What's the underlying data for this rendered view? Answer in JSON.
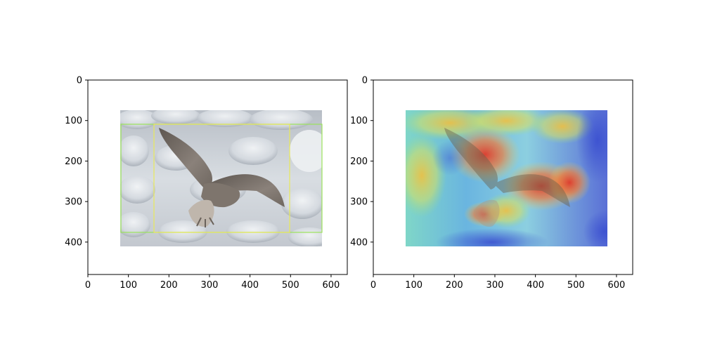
{
  "figure": {
    "panels": [
      {
        "name": "original-with-boxes",
        "image": "seagull-over-ice",
        "x_ticks": [
          "0",
          "100",
          "200",
          "300",
          "400",
          "500",
          "600"
        ],
        "y_ticks": [
          "0",
          "100",
          "200",
          "300",
          "400"
        ]
      },
      {
        "name": "heatmap-overlay",
        "image": "seagull-heatmap",
        "x_ticks": [
          "0",
          "100",
          "200",
          "300",
          "400",
          "500",
          "600"
        ],
        "y_ticks": [
          "0",
          "100",
          "200",
          "300",
          "400"
        ]
      }
    ],
    "axis_range": {
      "x": [
        0,
        640
      ],
      "y": [
        0,
        480
      ],
      "y_inverted": true
    },
    "image_extent": {
      "x": [
        80,
        577
      ],
      "y": [
        75,
        410
      ]
    },
    "boxes": [
      {
        "label": "",
        "color": "#9be35a",
        "x": [
          81,
          577
        ],
        "y": [
          110,
          376
        ]
      },
      {
        "label": "",
        "color": "#e8e85a",
        "x": [
          165,
          497
        ],
        "y": [
          110,
          376
        ]
      }
    ],
    "colors": {
      "heatmap_hot": "#e03a2a",
      "heatmap_cold": "#3a4fd0",
      "ice": "#cfd4da"
    }
  }
}
